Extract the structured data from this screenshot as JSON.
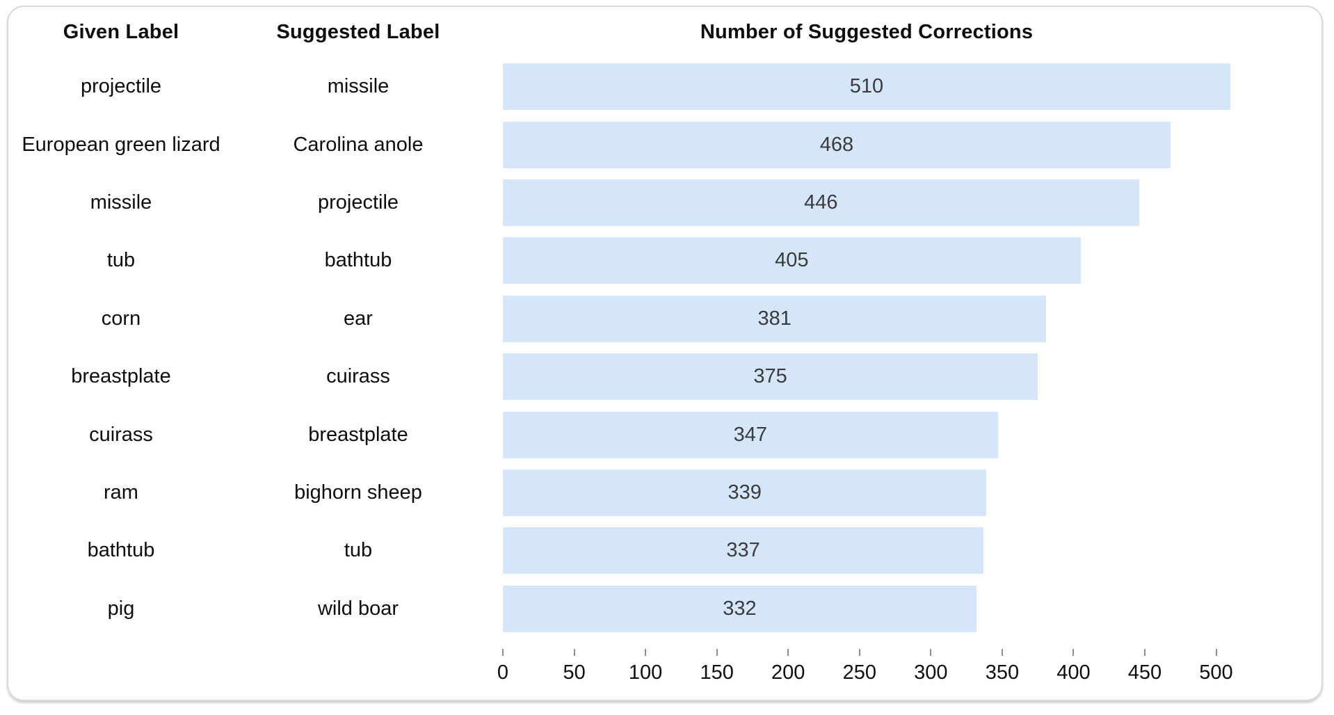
{
  "card": {
    "column_headers": {
      "given": "Given Label",
      "suggested": "Suggested Label"
    },
    "title": "Number of Suggested Corrections"
  },
  "colors": {
    "bar_fill": "#d5e5fa",
    "value_label": "#3b3b3b",
    "card_border": "#d9d9d9",
    "tick_mark": "#8c8c8c"
  },
  "chart_data": {
    "type": "bar",
    "orientation": "horizontal",
    "title": "Number of Suggested Corrections",
    "columns": [
      "Given Label",
      "Suggested Label",
      "Number of Suggested Corrections"
    ],
    "rows": [
      {
        "given_label": "projectile",
        "suggested_label": "missile",
        "value": 510
      },
      {
        "given_label": "European green lizard",
        "suggested_label": "Carolina anole",
        "value": 468
      },
      {
        "given_label": "missile",
        "suggested_label": "projectile",
        "value": 446
      },
      {
        "given_label": "tub",
        "suggested_label": "bathtub",
        "value": 405
      },
      {
        "given_label": "corn",
        "suggested_label": "ear",
        "value": 381
      },
      {
        "given_label": "breastplate",
        "suggested_label": "cuirass",
        "value": 375
      },
      {
        "given_label": "cuirass",
        "suggested_label": "breastplate",
        "value": 347
      },
      {
        "given_label": "ram",
        "suggested_label": "bighorn sheep",
        "value": 339
      },
      {
        "given_label": "bathtub",
        "suggested_label": "tub",
        "value": 337
      },
      {
        "given_label": "pig",
        "suggested_label": "wild boar",
        "value": 332
      }
    ],
    "value_axis": {
      "min": 0,
      "max": 500,
      "tick_interval": 50,
      "ticks": [
        0,
        50,
        100,
        150,
        200,
        250,
        300,
        350,
        400,
        450,
        500
      ],
      "position": "bottom"
    },
    "grid": false,
    "legend": false,
    "value_labels": "centered-inside-bar"
  }
}
